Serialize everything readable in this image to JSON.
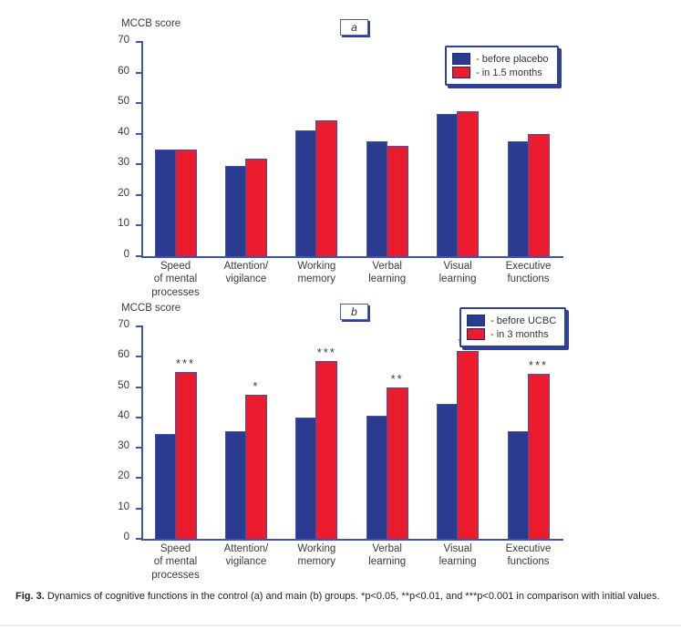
{
  "figure": {
    "caption": {
      "label": "Fig. 3.",
      "text": " Dynamics of cognitive functions in the control (a) and main (b) groups. *p<0.05, **p<0.01, and ***p<0.001 in comparison with initial values."
    }
  },
  "colors": {
    "bar_blue": "#2b3b8f",
    "bar_red": "#ea1c2d",
    "axis_blue": "#3f55a8",
    "legend_border_blue": "#2e3f96"
  },
  "chart_data": [
    {
      "type": "bar",
      "panel_label": "a",
      "ylabel": "MCCB score",
      "xlabel": "",
      "ylim": [
        0,
        70
      ],
      "ytick_step": 10,
      "grid": false,
      "legend_position": "top-right",
      "categories": [
        "Speed\nof mental\nprocesses",
        "Attention/\nvigilance",
        "Working\nmemory",
        "Verbal\nlearning",
        "Visual\nlearning",
        "Executive\nfunctions"
      ],
      "series": [
        {
          "name": "- before placebo",
          "color": "#2b3b8f",
          "values": [
            35,
            29.5,
            41,
            37.5,
            46.5,
            37.5
          ]
        },
        {
          "name": "- in 1.5 months",
          "color": "#ea1c2d",
          "values": [
            35,
            32,
            44.5,
            36,
            47.5,
            40
          ]
        }
      ],
      "significance": [
        "",
        "",
        "",
        "",
        "",
        ""
      ]
    },
    {
      "type": "bar",
      "panel_label": "b",
      "ylabel": "MCCB score",
      "xlabel": "",
      "ylim": [
        0,
        70
      ],
      "ytick_step": 10,
      "grid": false,
      "legend_position": "top-right",
      "categories": [
        "Speed\nof mental\nprocesses",
        "Attention/\nvigilance",
        "Working\nmemory",
        "Verbal\nlearning",
        "Visual\nlearning",
        "Executive\nfunctions"
      ],
      "series": [
        {
          "name": "- before UCBC",
          "color": "#2b3b8f",
          "values": [
            34.5,
            35.5,
            40,
            40.5,
            44.5,
            35.5
          ]
        },
        {
          "name": "- in 3 months",
          "color": "#ea1c2d",
          "values": [
            55,
            47.5,
            58.5,
            50,
            62,
            54.5
          ]
        }
      ],
      "significance": [
        "***",
        "*",
        "***",
        "**",
        "***",
        "***"
      ]
    }
  ]
}
